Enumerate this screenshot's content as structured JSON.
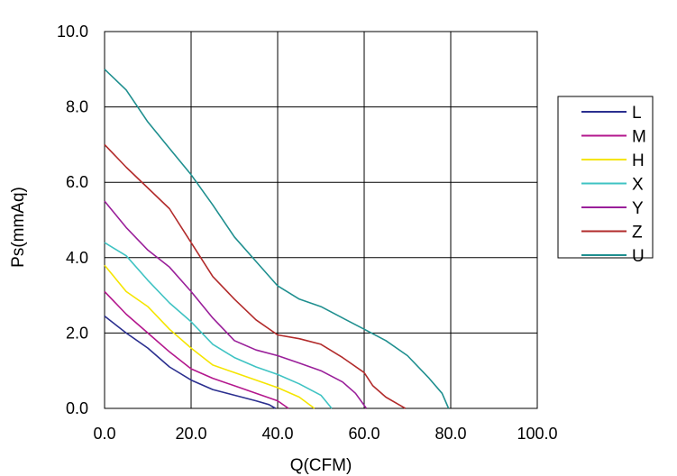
{
  "chart_data": {
    "type": "line",
    "title": "",
    "xlabel": "Q(CFM)",
    "ylabel": "Ps(mmAq)",
    "xlim": [
      0,
      100
    ],
    "ylim": [
      0,
      10
    ],
    "x_ticks": [
      "0.0",
      "20.0",
      "40.0",
      "60.0",
      "80.0",
      "100.0"
    ],
    "y_ticks": [
      "0.0",
      "2.0",
      "4.0",
      "6.0",
      "8.0",
      "10.0"
    ],
    "grid": true,
    "legend_position": "right",
    "series": [
      {
        "name": "L",
        "color": "#2b2f8f",
        "x": [
          0,
          5,
          10,
          15,
          20,
          25,
          30,
          35,
          38,
          39.5
        ],
        "y": [
          2.45,
          2.0,
          1.6,
          1.1,
          0.75,
          0.5,
          0.35,
          0.2,
          0.1,
          0
        ]
      },
      {
        "name": "M",
        "color": "#b3178d",
        "x": [
          0,
          5,
          10,
          15,
          20,
          25,
          30,
          35,
          40,
          42.5
        ],
        "y": [
          3.1,
          2.5,
          2.0,
          1.5,
          1.05,
          0.8,
          0.6,
          0.4,
          0.2,
          0
        ]
      },
      {
        "name": "H",
        "color": "#f5e500",
        "x": [
          0,
          5,
          10,
          15,
          20,
          25,
          30,
          35,
          40,
          45,
          48.5
        ],
        "y": [
          3.8,
          3.1,
          2.7,
          2.1,
          1.6,
          1.15,
          0.95,
          0.75,
          0.55,
          0.3,
          0
        ]
      },
      {
        "name": "X",
        "color": "#3fc3c3",
        "x": [
          0,
          5,
          10,
          15,
          20,
          25,
          30,
          35,
          40,
          45,
          50,
          52.5
        ],
        "y": [
          4.4,
          4.05,
          3.4,
          2.8,
          2.3,
          1.7,
          1.35,
          1.1,
          0.9,
          0.65,
          0.35,
          0
        ]
      },
      {
        "name": "Y",
        "color": "#9a1f9a",
        "x": [
          0,
          5,
          10,
          15,
          20,
          25,
          30,
          35,
          40,
          45,
          50,
          55,
          58,
          60.5
        ],
        "y": [
          5.5,
          4.8,
          4.2,
          3.75,
          3.1,
          2.4,
          1.8,
          1.55,
          1.4,
          1.2,
          1.0,
          0.7,
          0.4,
          0
        ]
      },
      {
        "name": "Z",
        "color": "#b22b2b",
        "x": [
          0,
          5,
          10,
          15,
          20,
          25,
          30,
          35,
          40,
          45,
          50,
          55,
          60,
          62,
          65,
          68,
          69.5
        ],
        "y": [
          7.0,
          6.4,
          5.85,
          5.3,
          4.4,
          3.5,
          2.9,
          2.35,
          1.95,
          1.85,
          1.7,
          1.35,
          0.95,
          0.6,
          0.3,
          0.1,
          0
        ]
      },
      {
        "name": "U",
        "color": "#1f8f8f",
        "x": [
          0,
          5,
          10,
          15,
          20,
          25,
          30,
          35,
          40,
          45,
          50,
          55,
          60,
          65,
          70,
          75,
          78,
          79.5
        ],
        "y": [
          9.0,
          8.45,
          7.6,
          6.9,
          6.2,
          5.4,
          4.55,
          3.9,
          3.25,
          2.9,
          2.7,
          2.4,
          2.1,
          1.8,
          1.4,
          0.8,
          0.4,
          0
        ]
      }
    ]
  }
}
